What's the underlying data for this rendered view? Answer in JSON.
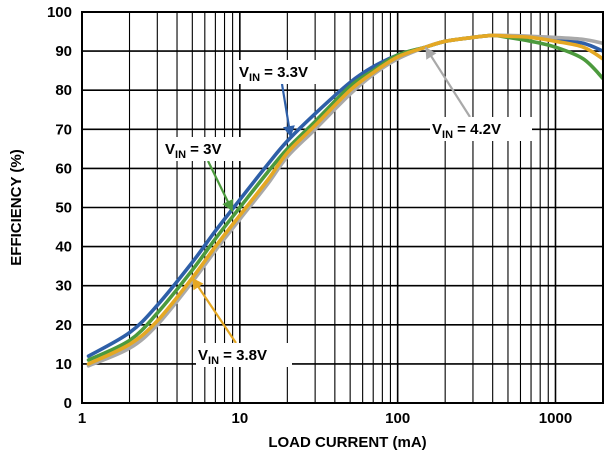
{
  "chart_data": {
    "type": "line",
    "title": "",
    "xlabel": "LOAD CURRENT (mA)",
    "ylabel": "EFFICIENCY (%)",
    "xscale": "log",
    "xlim": [
      1,
      2000
    ],
    "ylim": [
      0,
      100
    ],
    "grid": true,
    "x_ticks": [
      1,
      10,
      100,
      1000
    ],
    "x_tick_labels": [
      "1",
      "10",
      "100",
      "1000"
    ],
    "y_ticks": [
      0,
      10,
      20,
      30,
      40,
      50,
      60,
      70,
      80,
      90,
      100
    ],
    "y_tick_labels": [
      "0",
      "10",
      "20",
      "30",
      "40",
      "50",
      "60",
      "70",
      "80",
      "90",
      "100"
    ],
    "series": [
      {
        "color": "#2e5fa8",
        "x": [
          1.1,
          2,
          3,
          5,
          7,
          10,
          15,
          20,
          30,
          50,
          70,
          100,
          150,
          200,
          300,
          400,
          500,
          700,
          1000,
          1500,
          2000
        ],
        "y": [
          12,
          18,
          25,
          36,
          44,
          52,
          61,
          67,
          74,
          82,
          86,
          89,
          91,
          92.5,
          93.5,
          94,
          93.8,
          93.5,
          93,
          92,
          90
        ]
      },
      {
        "color": "#4c9a3d",
        "x": [
          1.1,
          2,
          3,
          5,
          7,
          10,
          15,
          20,
          30,
          50,
          70,
          100,
          150,
          200,
          300,
          400,
          500,
          700,
          1000,
          1500,
          2000
        ],
        "y": [
          11,
          16,
          23,
          34,
          42,
          50,
          59,
          65,
          72,
          81,
          85,
          89,
          91,
          92.5,
          93.5,
          94,
          93.5,
          92.5,
          91,
          88,
          83
        ]
      },
      {
        "color": "#a9a9a9",
        "x": [
          1.1,
          2,
          3,
          5,
          7,
          10,
          15,
          20,
          30,
          50,
          70,
          100,
          150,
          200,
          300,
          400,
          500,
          700,
          1000,
          1500,
          2000
        ],
        "y": [
          9.5,
          14,
          20,
          31,
          39,
          47,
          56,
          63,
          70,
          79,
          84,
          88,
          91,
          92.5,
          93.5,
          94,
          94,
          93.8,
          93.5,
          93,
          92
        ]
      },
      {
        "color": "#e5a823",
        "x": [
          1.1,
          2,
          3,
          5,
          7,
          10,
          15,
          20,
          30,
          50,
          70,
          100,
          150,
          200,
          300,
          400,
          500,
          700,
          1000,
          1500,
          2000
        ],
        "y": [
          10,
          15,
          21,
          32,
          40,
          48,
          57,
          64,
          71,
          80,
          84.5,
          88.5,
          91,
          92.5,
          93.5,
          94,
          93.8,
          93.5,
          92.5,
          91,
          88
        ]
      }
    ],
    "annotations": [
      {
        "main": "V",
        "sub": "IN",
        "rest": " = 3.3V",
        "color": "#2e5fa8",
        "target": [
          21,
          68
        ]
      },
      {
        "main": "V",
        "sub": "IN",
        "rest": " = 3V",
        "color": "#4c9a3d",
        "target": [
          9,
          49
        ]
      },
      {
        "main": "V",
        "sub": "IN",
        "rest": " = 4.2V",
        "color": "#a9a9a9",
        "target": [
          150,
          91
        ]
      },
      {
        "main": "V",
        "sub": "IN",
        "rest": " = 3.8V",
        "color": "#e5a823",
        "target": [
          5,
          32
        ]
      }
    ]
  }
}
